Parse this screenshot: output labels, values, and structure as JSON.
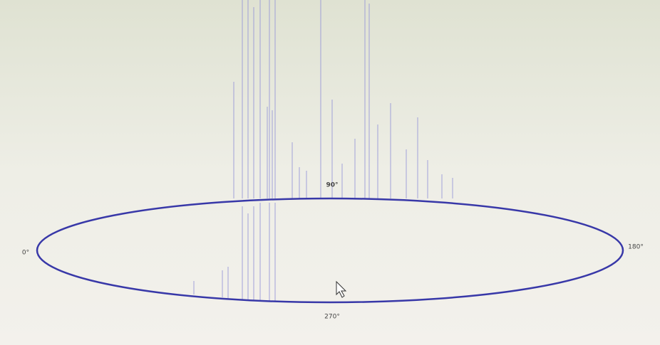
{
  "labels": {
    "top": "90°",
    "left": "0°",
    "right": "180°",
    "bottom": "270°"
  }
}
